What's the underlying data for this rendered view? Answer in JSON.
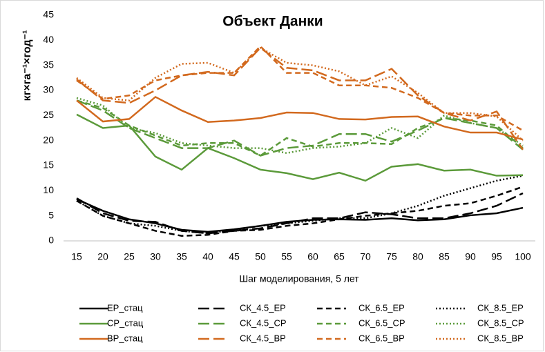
{
  "chart_data": {
    "type": "line",
    "title": "Объект Данки",
    "x_label": "Шаг моделирования, 5 лет",
    "y_label": "кг×га⁻¹×год⁻¹",
    "categories": [
      15,
      20,
      25,
      30,
      35,
      40,
      45,
      50,
      55,
      60,
      65,
      70,
      75,
      80,
      85,
      90,
      95,
      100
    ],
    "ylim": [
      0,
      45
    ],
    "yticks": [
      0,
      5,
      10,
      15,
      20,
      25,
      30,
      35,
      40,
      45
    ],
    "grid": false,
    "legend": "bottom",
    "series": [
      {
        "name": "ЕР_стац",
        "color": "#000000",
        "dash": "solid",
        "values": [
          8.3,
          6,
          4.3,
          3.5,
          2.2,
          1.8,
          2.3,
          3,
          3.8,
          4.2,
          4.3,
          4.2,
          4.5,
          4.1,
          4.3,
          5.1,
          5.5,
          6.6
        ]
      },
      {
        "name": "СК_4.5_ЕР",
        "color": "#000000",
        "dash": "long",
        "values": [
          8.5,
          5.5,
          4,
          3.8,
          2,
          1.5,
          2,
          2.5,
          3.5,
          4.5,
          4.5,
          5.7,
          5.3,
          4.5,
          4.5,
          5.5,
          7,
          9.5
        ]
      },
      {
        "name": "СК_6.5_ЕР",
        "color": "#000000",
        "dash": "dash",
        "values": [
          8,
          5,
          3.5,
          2,
          1,
          1.2,
          2,
          2.2,
          3,
          3.5,
          4.3,
          5,
          5.5,
          6,
          7,
          7.5,
          9,
          10.8
        ]
      },
      {
        "name": "СК_8.5_ЕР",
        "color": "#000000",
        "dash": "dot",
        "values": [
          8,
          5,
          3.5,
          3,
          2,
          1.5,
          2.2,
          3,
          3.5,
          4,
          4.5,
          4.5,
          5.5,
          7,
          9,
          10.5,
          12,
          13
        ]
      },
      {
        "name": "СР_стац",
        "color": "#5b9a3a",
        "dash": "solid",
        "values": [
          25.2,
          22.5,
          23,
          16.8,
          14.2,
          18.5,
          16.5,
          14.2,
          13.5,
          12.3,
          13.6,
          12,
          14.8,
          15.3,
          14,
          14.2,
          13,
          13.1
        ]
      },
      {
        "name": "СК_4.5_СР",
        "color": "#5b9a3a",
        "dash": "long",
        "values": [
          28,
          26,
          22.5,
          20.5,
          18.5,
          18.5,
          20,
          17,
          18.5,
          19,
          21.3,
          21.3,
          19.8,
          22,
          24.5,
          23.5,
          22.5,
          18.2
        ]
      },
      {
        "name": "СК_6.5_СР",
        "color": "#5b9a3a",
        "dash": "dash",
        "values": [
          28,
          26.5,
          23,
          21,
          19,
          19.5,
          19.5,
          17,
          20.5,
          18.8,
          19.5,
          19.5,
          19.3,
          22.5,
          24.5,
          24,
          23,
          18.5
        ]
      },
      {
        "name": "СК_8.5_СР",
        "color": "#5b9a3a",
        "dash": "dot",
        "values": [
          28.5,
          27,
          22.5,
          21.5,
          19.5,
          19,
          18.5,
          18.5,
          17.5,
          18.5,
          18.8,
          19.5,
          22.5,
          20.5,
          25,
          23.5,
          22.5,
          19
        ]
      },
      {
        "name": "ВР_стац",
        "color": "#d2691e",
        "dash": "solid",
        "values": [
          28,
          23.8,
          24.3,
          28.7,
          26,
          23.7,
          24,
          24.5,
          25.6,
          25.5,
          24.3,
          24.2,
          24.7,
          24.8,
          22.8,
          21.6,
          21.6,
          20.2
        ]
      },
      {
        "name": "СК_4.5_ВР",
        "color": "#d2691e",
        "dash": "long",
        "values": [
          32.2,
          28,
          27.5,
          30,
          33,
          33.7,
          33,
          38.5,
          34.5,
          34,
          32,
          32,
          34.3,
          29,
          25.5,
          24,
          25.8,
          18.2
        ]
      },
      {
        "name": "СК_6.5_ВР",
        "color": "#d2691e",
        "dash": "dash",
        "values": [
          32,
          28.3,
          29,
          32,
          33,
          33.5,
          33.5,
          38.8,
          33.5,
          33.5,
          31,
          31,
          30.5,
          28.5,
          25.5,
          25,
          25,
          22
        ]
      },
      {
        "name": "СК_8.5_ВР",
        "color": "#d2691e",
        "dash": "dot",
        "values": [
          32.5,
          28.5,
          28,
          32.5,
          35.3,
          35.5,
          33.5,
          38.5,
          35.5,
          35,
          33.8,
          31,
          32.8,
          29.5,
          25.5,
          25.5,
          24.8,
          20
        ]
      }
    ]
  }
}
